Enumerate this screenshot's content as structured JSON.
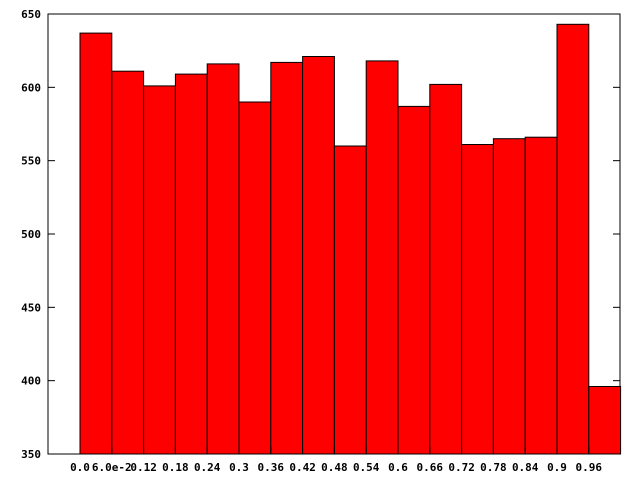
{
  "chart_data": {
    "type": "bar",
    "title": "",
    "xlabel": "",
    "ylabel": "",
    "categories": [
      "0.0",
      "6.0e-2",
      "0.12",
      "0.18",
      "0.24",
      "0.3",
      "0.36",
      "0.42",
      "0.48",
      "0.54",
      "0.6",
      "0.66",
      "0.72",
      "0.78",
      "0.84",
      "0.9",
      "0.96"
    ],
    "values": [
      637,
      611,
      601,
      609,
      616,
      590,
      617,
      621,
      560,
      618,
      587,
      602,
      561,
      565,
      566,
      643,
      396
    ],
    "ylim": [
      350,
      650
    ],
    "yticks": [
      "350",
      "400",
      "450",
      "500",
      "550",
      "600",
      "650"
    ],
    "grid": false,
    "legend": "none",
    "bar_color": "#ff0000",
    "bar_edge_color": "#000000"
  }
}
